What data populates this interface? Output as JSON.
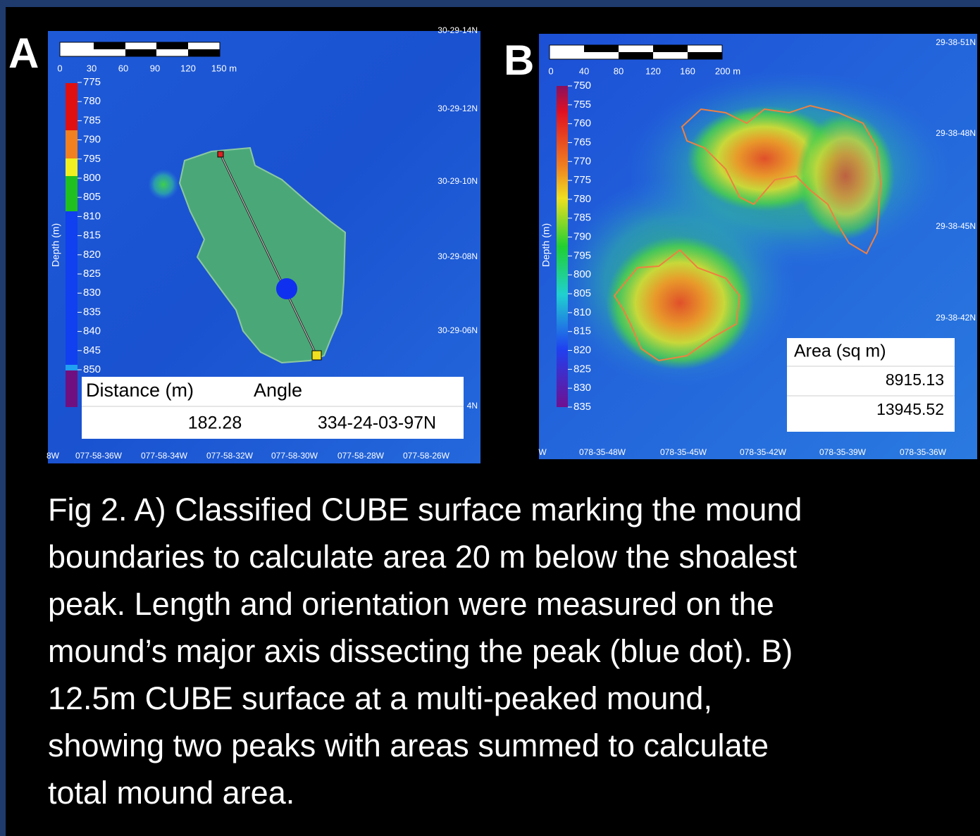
{
  "panels": [
    {
      "label": "A",
      "scale_labels": [
        "0",
        "30",
        "60",
        "90",
        "120",
        "150 m"
      ],
      "depth_axis_title": "Depth (m)",
      "depth_labels": [
        "775",
        "780",
        "785",
        "790",
        "795",
        "800",
        "805",
        "810",
        "815",
        "820",
        "825",
        "830",
        "835",
        "840",
        "845",
        "850"
      ],
      "lat_labels": [
        "30-29-14N",
        "30-29-12N",
        "30-29-10N",
        "30-29-08N",
        "30-29-06N",
        "4N"
      ],
      "lon_labels": [
        "8W",
        "077-58-36W",
        "077-58-34W",
        "077-58-32W",
        "077-58-30W",
        "077-58-28W",
        "077-58-26W"
      ],
      "table": {
        "headers": [
          "Distance (m)",
          "Angle"
        ],
        "row": [
          "182.28",
          "334-24-03-97N"
        ]
      }
    },
    {
      "label": "B",
      "scale_labels": [
        "0",
        "40",
        "80",
        "120",
        "160",
        "200 m"
      ],
      "depth_axis_title": "Depth (m)",
      "depth_labels": [
        "750",
        "755",
        "760",
        "765",
        "770",
        "775",
        "780",
        "785",
        "790",
        "795",
        "800",
        "805",
        "810",
        "815",
        "820",
        "825",
        "830",
        "835"
      ],
      "lat_labels": [
        "29-38-51N",
        "29-38-48N",
        "29-38-45N",
        "29-38-42N"
      ],
      "lon_labels": [
        "W",
        "078-35-48W",
        "078-35-45W",
        "078-35-42W",
        "078-35-39W",
        "078-35-36W"
      ],
      "table": {
        "header": "Area (sq m)",
        "rows": [
          "8915.13",
          "13945.52"
        ]
      }
    }
  ],
  "caption": [
    "Fig 2. A) Classified CUBE surface marking the mound",
    "boundaries to calculate area 20 m below the shoalest",
    "peak. Length and orientation were measured on the",
    "mound’s major axis dissecting the peak (blue dot). B)",
    "12.5m CUBE surface at a multi-peaked mound,",
    "showing two peaks with areas summed to calculate",
    "total mound area."
  ]
}
